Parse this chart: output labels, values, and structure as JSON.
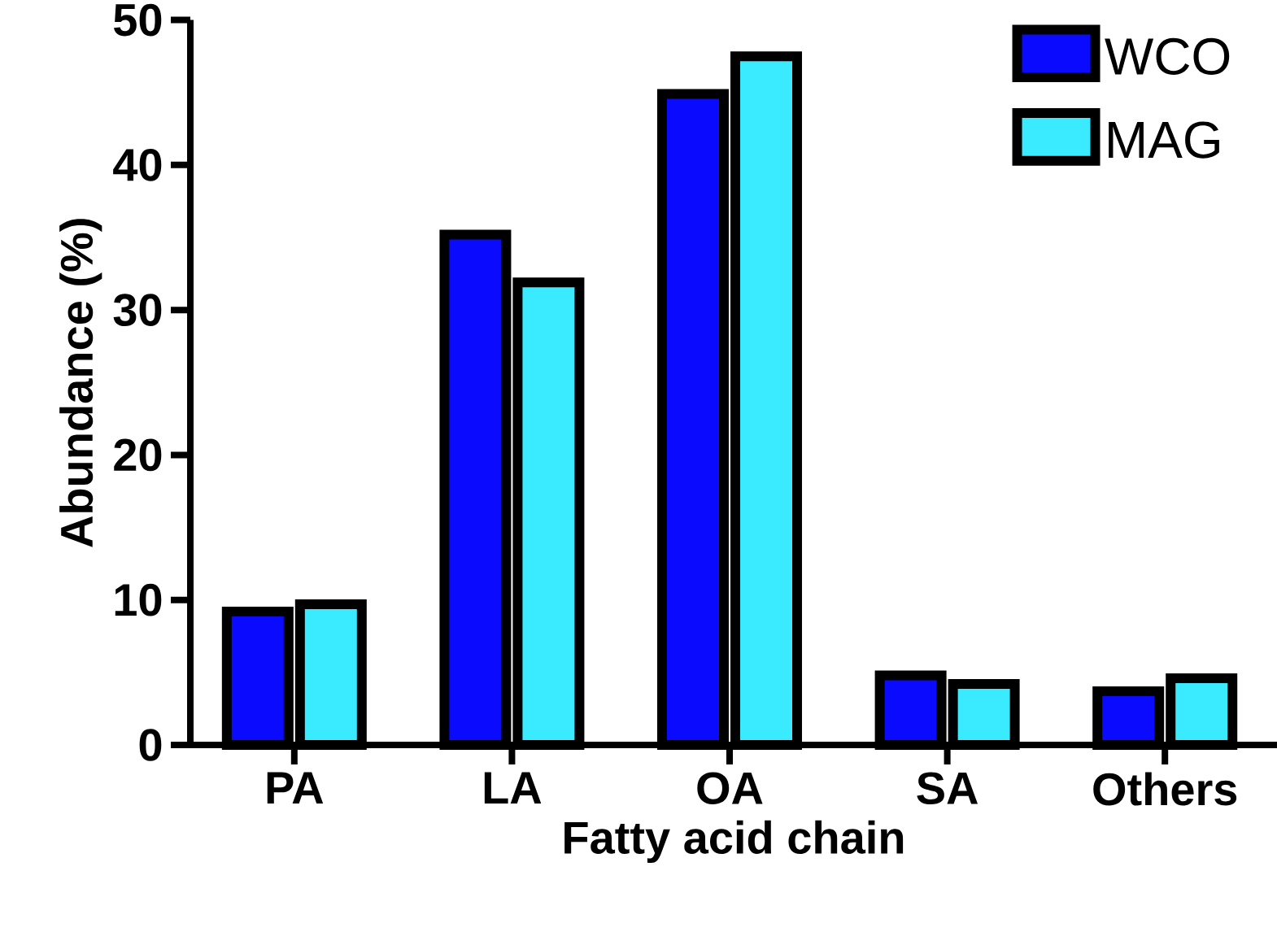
{
  "chart_data": {
    "type": "bar",
    "xlabel": "Fatty acid chain",
    "ylabel": "Abundance (%)",
    "categories": [
      "PA",
      "LA",
      "OA",
      "SA",
      "Others"
    ],
    "series": [
      {
        "name": "WCO",
        "color": "#0a0aff",
        "values": [
          9.2,
          35.2,
          44.9,
          4.8,
          3.7
        ]
      },
      {
        "name": "MAG",
        "color": "#3aeaff",
        "values": [
          9.7,
          31.9,
          47.5,
          4.2,
          4.6
        ]
      }
    ],
    "ylim": [
      0,
      50
    ],
    "yticks": [
      0,
      10,
      20,
      30,
      40,
      50
    ],
    "legend": "top right"
  }
}
